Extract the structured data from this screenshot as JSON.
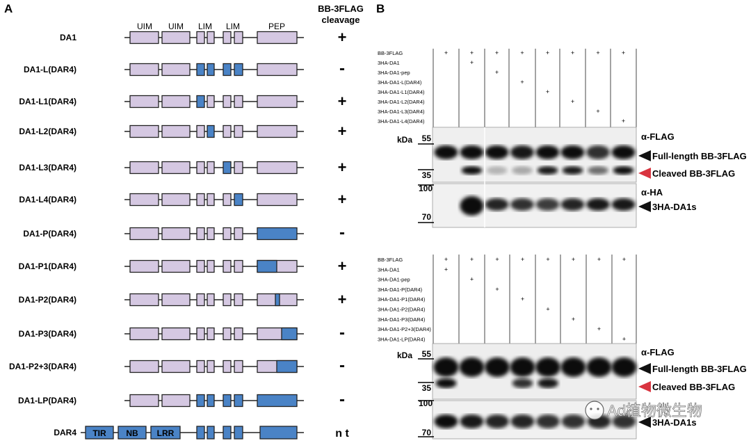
{
  "panel_a": {
    "label": "A",
    "header_result": [
      "BB-3FLAG",
      "cleavage"
    ],
    "domain_headers": [
      "UIM",
      "UIM",
      "LIM",
      "LIM",
      "PEP"
    ],
    "constructs": [
      {
        "name": "DA1",
        "result": "+",
        "dar4": [
          0,
          0,
          0,
          0,
          0,
          0,
          0
        ]
      },
      {
        "name": "DA1-L(DAR4)",
        "result": "-",
        "dar4": [
          0,
          0,
          1,
          1,
          1,
          1,
          0
        ]
      },
      {
        "name": "DA1-L1(DAR4)",
        "result": "+",
        "dar4": [
          0,
          0,
          1,
          0,
          0,
          0,
          0
        ]
      },
      {
        "name": "DA1-L2(DAR4)",
        "result": "+",
        "dar4": [
          0,
          0,
          0,
          1,
          0,
          0,
          0
        ]
      },
      {
        "name": "DA1-L3(DAR4)",
        "result": "+",
        "dar4": [
          0,
          0,
          0,
          0,
          1,
          0,
          0
        ]
      },
      {
        "name": "DA1-L4(DAR4)",
        "result": "+",
        "dar4": [
          0,
          0,
          0,
          0,
          0,
          1,
          0
        ]
      },
      {
        "name": "DA1-P(DAR4)",
        "result": "-",
        "dar4": [
          0,
          0,
          0,
          0,
          0,
          0,
          1
        ]
      },
      {
        "name": "DA1-P1(DAR4)",
        "result": "+",
        "pep": "p1"
      },
      {
        "name": "DA1-P2(DAR4)",
        "result": "+",
        "pep": "p2"
      },
      {
        "name": "DA1-P3(DAR4)",
        "result": "-",
        "pep": "p3"
      },
      {
        "name": "DA1-P2+3(DAR4)",
        "result": "-",
        "pep": "p23"
      },
      {
        "name": "DA1-LP(DAR4)",
        "result": "-",
        "dar4": [
          0,
          0,
          1,
          1,
          1,
          1,
          1
        ]
      }
    ],
    "dar4_row": {
      "name": "DAR4",
      "result": "n t",
      "domains": [
        "TIR",
        "NB",
        "LRR"
      ]
    }
  },
  "panel_b": {
    "label": "B",
    "kda_label": "kDa",
    "blot1": {
      "sample_labels": [
        "BB-3FLAG",
        "3HA-DA1",
        "3HA-DA1-pep",
        "3HA-DA1-L(DAR4)",
        "3HA-DA1-L1(DAR4)",
        "3HA-DA1-L2(DAR4)",
        "3HA-DA1-L3(DAR4)",
        "3HA-DA1-L4(DAR4)"
      ],
      "markers_top": [
        "55",
        "35"
      ],
      "markers_bottom": [
        "100",
        "70"
      ],
      "antibody_top": "α-FLAG",
      "antibody_bottom": "α-HA",
      "band_labels": [
        "Full-length BB-3FLAG",
        "Cleaved BB-3FLAG",
        "3HA-DA1s"
      ]
    },
    "blot2": {
      "sample_labels": [
        "BB-3FLAG",
        "3HA-DA1",
        "3HA-DA1-pep",
        "3HA-DA1-P(DAR4)",
        "3HA-DA1-P1(DAR4)",
        "3HA-DA1-P2(DAR4)",
        "3HA-DA1-P3(DAR4)",
        "3HA-DA1-P2+3(DAR4)",
        "3HA-DA1-LP(DAR4)"
      ],
      "markers_top": [
        "55",
        "35"
      ],
      "markers_bottom": [
        "100",
        "70"
      ],
      "antibody_top": "α-FLAG",
      "band_labels": [
        "Full-length BB-3FLAG",
        "Cleaved BB-3FLAG",
        "3HA-DA1s"
      ]
    },
    "plus": "+"
  },
  "watermark": "Ad植物微生物",
  "colors": {
    "lavender": "#d5c8e2",
    "blue": "#4a83c6",
    "red": "#d9343f"
  }
}
